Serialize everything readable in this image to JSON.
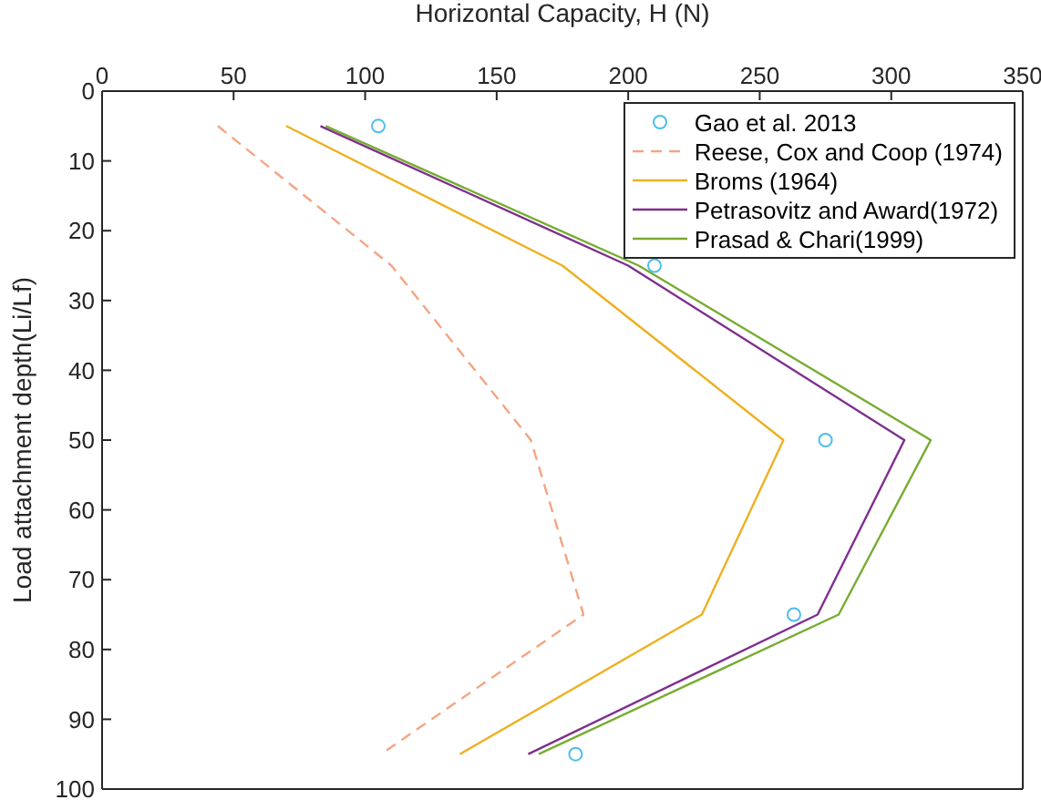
{
  "chart_data": {
    "type": "line",
    "xlabel": "Horizontal Capacity, H (N)",
    "ylabel": "Load attachment depth(Li/Lf)",
    "xlim": [
      0,
      350
    ],
    "xticks": [
      0,
      50,
      100,
      150,
      200,
      250,
      300,
      350
    ],
    "ylim": [
      100,
      0
    ],
    "yticks": [
      0,
      10,
      20,
      30,
      40,
      50,
      60,
      70,
      80,
      90,
      100
    ],
    "grid": false,
    "legend": "top right",
    "marker": "none",
    "series": [
      {
        "name": "Gao et al. 2013",
        "type": "scatter",
        "marker": "circle",
        "color": "#4dbeee",
        "x": [
          105,
          210,
          275,
          263,
          180
        ],
        "values": [
          5,
          25,
          50,
          75,
          95
        ]
      },
      {
        "name": "Reese, Cox and Coop (1974)",
        "color": "#f4a582",
        "line_style": "dashed",
        "x": [
          44,
          110,
          163,
          183,
          106
        ],
        "values": [
          5,
          25,
          50,
          75,
          95
        ]
      },
      {
        "name": "Broms (1964)",
        "color": "#edb120",
        "line_style": "solid",
        "x": [
          70,
          175,
          259,
          228,
          136
        ],
        "values": [
          5,
          25,
          50,
          75,
          95
        ]
      },
      {
        "name": "Petrasovitz and Award(1972)",
        "color": "#7e2f8e",
        "line_style": "solid",
        "x": [
          83,
          200,
          305,
          272,
          162
        ],
        "values": [
          5,
          25,
          50,
          75,
          95
        ]
      },
      {
        "name": "Prasad & Chari(1999)",
        "color": "#77ac30",
        "line_style": "solid",
        "x": [
          85,
          204,
          315,
          280,
          166
        ],
        "values": [
          5,
          25,
          50,
          75,
          95
        ]
      }
    ]
  }
}
